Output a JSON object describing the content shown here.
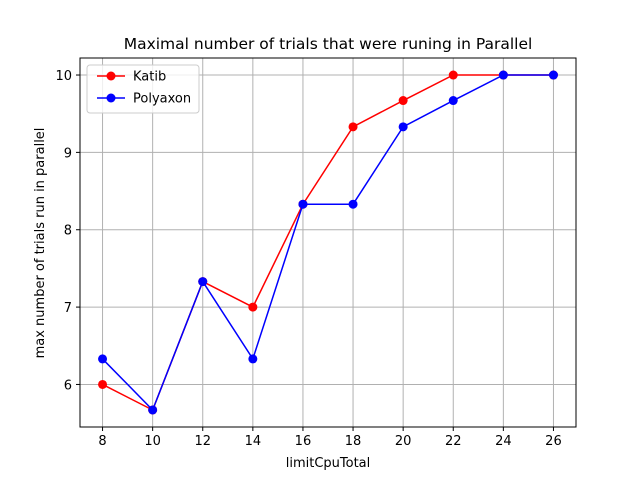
{
  "chart_data": {
    "type": "line",
    "title": "Maximal number of trials that were  runing in Parallel",
    "xlabel": "limitCpuTotal",
    "ylabel": "max number of trials run in parallel",
    "x": [
      8,
      10,
      12,
      14,
      16,
      18,
      20,
      22,
      24,
      26
    ],
    "xticks": [
      "8",
      "10",
      "12",
      "14",
      "16",
      "18",
      "20",
      "22",
      "24",
      "26"
    ],
    "yticks": [
      "6",
      "7",
      "8",
      "9",
      "10"
    ],
    "xlim": [
      7.1,
      26.9
    ],
    "ylim": [
      5.45,
      10.22
    ],
    "grid": true,
    "legend_position": "upper-left",
    "series": [
      {
        "name": "Katib",
        "color": "#ff0000",
        "marker": "circle",
        "values": [
          6.0,
          5.67,
          7.33,
          7.0,
          8.33,
          9.33,
          9.67,
          10.0,
          10.0,
          10.0
        ]
      },
      {
        "name": "Polyaxon",
        "color": "#0000ff",
        "marker": "circle",
        "values": [
          6.33,
          5.67,
          7.33,
          6.33,
          8.33,
          8.33,
          9.33,
          9.67,
          10.0,
          10.0
        ]
      }
    ]
  }
}
